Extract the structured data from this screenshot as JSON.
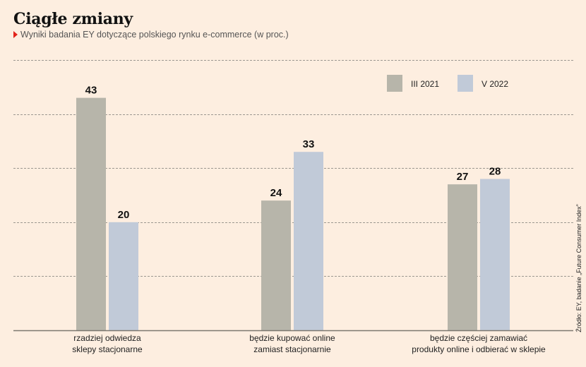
{
  "title": "Ciągłe zmiany",
  "subtitle": "Wyniki badania EY dotyczące polskiego rynku e-commerce (w proc.)",
  "source": "Źródło: EY, badanie „Future Consumer Index”",
  "colors": {
    "background": "#fdeee0",
    "series_1": "#b7b5aa",
    "series_2": "#c1cad8",
    "grid": "#9c9790",
    "baseline": "#7d7870",
    "accent_marker": "#e2231a"
  },
  "chart_data": {
    "type": "bar",
    "categories": [
      [
        "rzadziej odwiedza",
        "sklepy stacjonarne"
      ],
      [
        "będzie kupować online",
        "zamiast stacjonarnie"
      ],
      [
        "będzie częściej zamawiać",
        "produkty online i odbierać w sklepie"
      ]
    ],
    "series": [
      {
        "name": "III 2021",
        "values": [
          43,
          24,
          27
        ]
      },
      {
        "name": "V 2022",
        "values": [
          20,
          33,
          28
        ]
      }
    ],
    "ylim": [
      0,
      50
    ],
    "grid": true,
    "gridlines": [
      10,
      20,
      30,
      40,
      50
    ],
    "data_labels": true,
    "legend_position": "top-right",
    "xlabel": "",
    "ylabel": ""
  }
}
